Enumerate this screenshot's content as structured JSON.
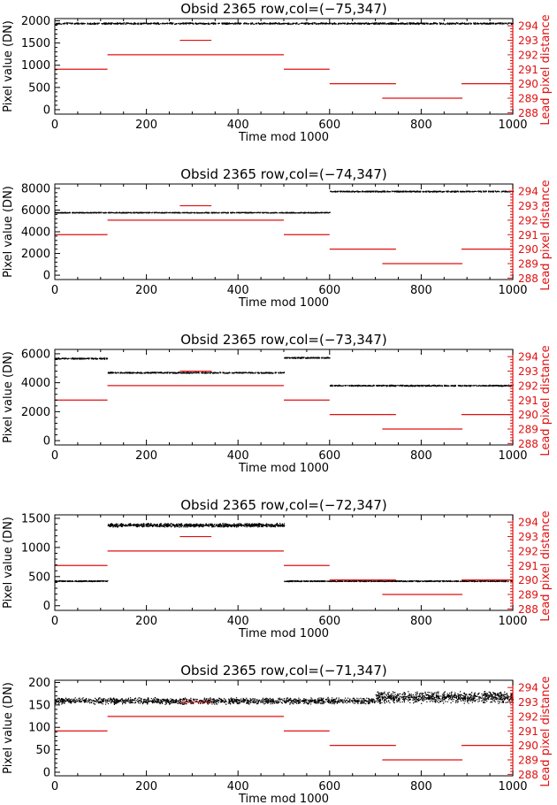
{
  "colors": {
    "data_points": "#000000",
    "lead_pixel_lines": "#e01010",
    "axes": "#000000",
    "right_axis": "#e01010"
  },
  "chart_data": [
    {
      "type": "scatter",
      "title": "Obsid 2365 row,col=(−75,347)",
      "xlabel": "Time mod 1000",
      "ylabel": "Pixel value (DN)",
      "ylabel_right": "Lead pixel distance",
      "xlim": [
        0,
        1000
      ],
      "ylim": [
        -100,
        2050
      ],
      "y2lim": [
        287.9,
        294.5
      ],
      "x_ticks": [
        0,
        200,
        400,
        600,
        800,
        1000
      ],
      "y_ticks": [
        0,
        500,
        1000,
        1500,
        2000
      ],
      "y2_ticks": [
        288,
        289,
        290,
        291,
        292,
        293,
        294
      ],
      "series": [
        {
          "x_range": [
            0,
            1000
          ],
          "level": 1950,
          "spread": 20,
          "dots": 1300
        }
      ],
      "lead_pixel_segments": [
        {
          "x0": 0,
          "x1": 115,
          "value": 291
        },
        {
          "x0": 115,
          "x1": 500,
          "value": 292
        },
        {
          "x0": 273,
          "x1": 342,
          "value": 293
        },
        {
          "x0": 500,
          "x1": 600,
          "value": 291
        },
        {
          "x0": 600,
          "x1": 745,
          "value": 290
        },
        {
          "x0": 715,
          "x1": 890,
          "value": 289
        },
        {
          "x0": 888,
          "x1": 1000,
          "value": 290
        }
      ]
    },
    {
      "type": "scatter",
      "title": "Obsid 2365 row,col=(−74,347)",
      "xlabel": "Time mod 1000",
      "ylabel": "Pixel value (DN)",
      "ylabel_right": "Lead pixel distance",
      "xlim": [
        0,
        1000
      ],
      "ylim": [
        -400,
        8400
      ],
      "y2lim": [
        287.9,
        294.5
      ],
      "x_ticks": [
        0,
        200,
        400,
        600,
        800,
        1000
      ],
      "y_ticks": [
        0,
        2000,
        4000,
        6000,
        8000
      ],
      "y2_ticks": [
        288,
        289,
        290,
        291,
        292,
        293,
        294
      ],
      "series": [
        {
          "x_range": [
            0,
            600
          ],
          "level": 5800,
          "spread": 40,
          "dots": 800
        },
        {
          "x_range": [
            600,
            1000
          ],
          "level": 7750,
          "spread": 60,
          "dots": 550
        }
      ],
      "lead_pixel_segments": [
        {
          "x0": 0,
          "x1": 115,
          "value": 291
        },
        {
          "x0": 115,
          "x1": 500,
          "value": 292
        },
        {
          "x0": 273,
          "x1": 342,
          "value": 293
        },
        {
          "x0": 500,
          "x1": 600,
          "value": 291
        },
        {
          "x0": 600,
          "x1": 745,
          "value": 290
        },
        {
          "x0": 715,
          "x1": 890,
          "value": 289
        },
        {
          "x0": 888,
          "x1": 1000,
          "value": 290
        }
      ]
    },
    {
      "type": "scatter",
      "title": "Obsid 2365 row,col=(−73,347)",
      "xlabel": "Time mod 1000",
      "ylabel": "Pixel value (DN)",
      "ylabel_right": "Lead pixel distance",
      "xlim": [
        0,
        1000
      ],
      "ylim": [
        -300,
        6300
      ],
      "y2lim": [
        287.9,
        294.5
      ],
      "x_ticks": [
        0,
        200,
        400,
        600,
        800,
        1000
      ],
      "y_ticks": [
        0,
        2000,
        4000,
        6000
      ],
      "y2_ticks": [
        288,
        289,
        290,
        291,
        292,
        293,
        294
      ],
      "series": [
        {
          "x_range": [
            0,
            115
          ],
          "level": 5700,
          "spread": 50,
          "dots": 180
        },
        {
          "x_range": [
            115,
            500
          ],
          "level": 4720,
          "spread": 50,
          "dots": 550
        },
        {
          "x_range": [
            500,
            600
          ],
          "level": 5750,
          "spread": 50,
          "dots": 150
        },
        {
          "x_range": [
            600,
            1000
          ],
          "level": 3830,
          "spread": 50,
          "dots": 550
        }
      ],
      "lead_pixel_segments": [
        {
          "x0": 0,
          "x1": 115,
          "value": 291
        },
        {
          "x0": 115,
          "x1": 500,
          "value": 292
        },
        {
          "x0": 273,
          "x1": 342,
          "value": 293
        },
        {
          "x0": 500,
          "x1": 600,
          "value": 291
        },
        {
          "x0": 600,
          "x1": 745,
          "value": 290
        },
        {
          "x0": 715,
          "x1": 890,
          "value": 289
        },
        {
          "x0": 888,
          "x1": 1000,
          "value": 290
        }
      ]
    },
    {
      "type": "scatter",
      "title": "Obsid 2365 row,col=(−72,347)",
      "xlabel": "Time mod 1000",
      "ylabel": "Pixel value (DN)",
      "ylabel_right": "Lead pixel distance",
      "xlim": [
        0,
        1000
      ],
      "ylim": [
        -80,
        1560
      ],
      "y2lim": [
        287.9,
        294.5
      ],
      "x_ticks": [
        0,
        200,
        400,
        600,
        800,
        1000
      ],
      "y_ticks": [
        0,
        500,
        1000,
        1500
      ],
      "y2_ticks": [
        288,
        289,
        290,
        291,
        292,
        293,
        294
      ],
      "series": [
        {
          "x_range": [
            0,
            115
          ],
          "level": 430,
          "spread": 10,
          "dots": 180
        },
        {
          "x_range": [
            115,
            500
          ],
          "level": 1390,
          "spread": 35,
          "dots": 900
        },
        {
          "x_range": [
            500,
            1000
          ],
          "level": 430,
          "spread": 10,
          "dots": 750
        }
      ],
      "lead_pixel_segments": [
        {
          "x0": 0,
          "x1": 115,
          "value": 291
        },
        {
          "x0": 115,
          "x1": 500,
          "value": 292
        },
        {
          "x0": 273,
          "x1": 342,
          "value": 293
        },
        {
          "x0": 500,
          "x1": 600,
          "value": 291
        },
        {
          "x0": 600,
          "x1": 745,
          "value": 290
        },
        {
          "x0": 715,
          "x1": 890,
          "value": 289
        },
        {
          "x0": 888,
          "x1": 1000,
          "value": 290
        }
      ]
    },
    {
      "type": "scatter",
      "title": "Obsid 2365 row,col=(−71,347)",
      "xlabel": "Time mod 1000",
      "ylabel": "Pixel value (DN)",
      "ylabel_right": "Lead pixel distance",
      "xlim": [
        0,
        1000
      ],
      "ylim": [
        -8,
        205
      ],
      "y2lim": [
        287.9,
        294.5
      ],
      "x_ticks": [
        0,
        200,
        400,
        600,
        800,
        1000
      ],
      "y_ticks": [
        0,
        50,
        100,
        150,
        200
      ],
      "y2_ticks": [
        288,
        289,
        290,
        291,
        292,
        293,
        294
      ],
      "series": [
        {
          "x_range": [
            0,
            700
          ],
          "level": 160,
          "spread": 8,
          "dots": 1400
        },
        {
          "x_range": [
            700,
            1000
          ],
          "level": 168,
          "spread": 14,
          "dots": 900
        }
      ],
      "lead_pixel_segments": [
        {
          "x0": 0,
          "x1": 115,
          "value": 291
        },
        {
          "x0": 115,
          "x1": 500,
          "value": 292
        },
        {
          "x0": 273,
          "x1": 342,
          "value": 293
        },
        {
          "x0": 500,
          "x1": 600,
          "value": 291
        },
        {
          "x0": 600,
          "x1": 745,
          "value": 290
        },
        {
          "x0": 715,
          "x1": 890,
          "value": 289
        },
        {
          "x0": 888,
          "x1": 1000,
          "value": 290
        }
      ]
    }
  ]
}
